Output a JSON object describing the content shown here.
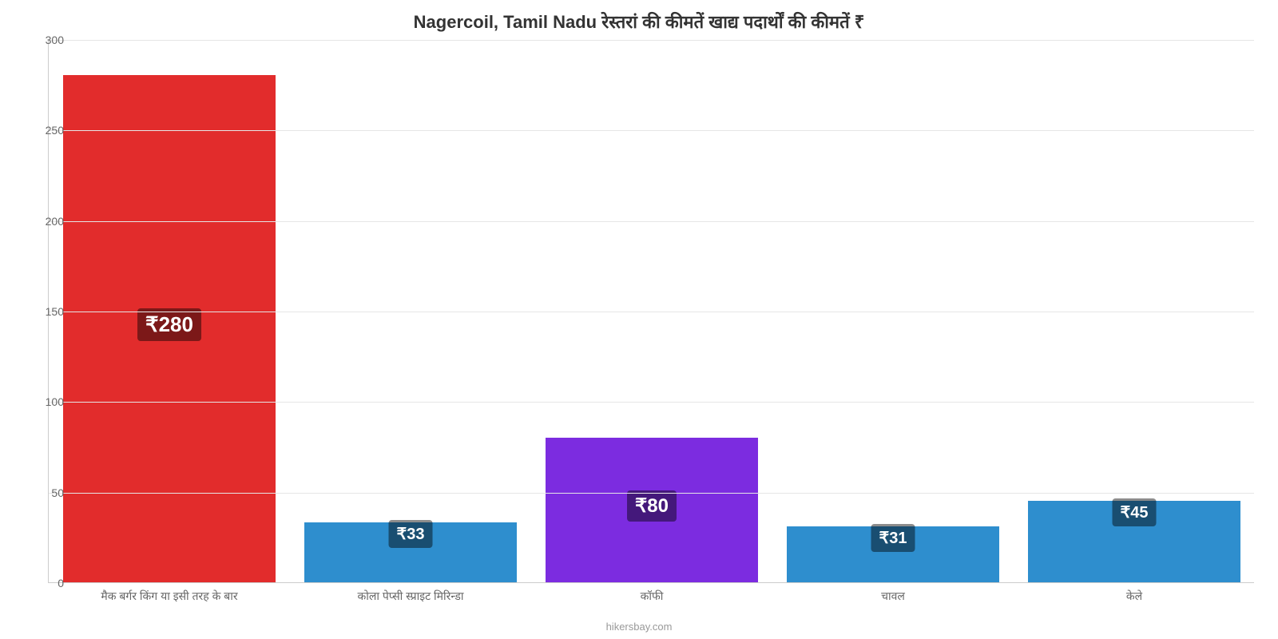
{
  "chart": {
    "type": "bar",
    "title": "Nagercoil, Tamil Nadu रेस्तरां की कीमतें खाद्य पदार्थों की कीमतें ₹",
    "title_fontsize": 22,
    "title_color": "#333333",
    "background_color": "#ffffff",
    "grid_color": "#e6e6e6",
    "axis_color": "#cccccc",
    "ylim": [
      0,
      300
    ],
    "ytick_step": 50,
    "yticks": [
      0,
      50,
      100,
      150,
      200,
      250,
      300
    ],
    "categories": [
      "मैक बर्गर किंग या इसी तरह के बार",
      "कोला पेप्सी स्प्राइट मिरिन्डा",
      "कॉफी",
      "चावल",
      "केले"
    ],
    "values": [
      280,
      33,
      80,
      31,
      45
    ],
    "value_labels": [
      "₹280",
      "₹33",
      "₹80",
      "₹31",
      "₹45"
    ],
    "bar_colors": [
      "#e22c2c",
      "#2e8ece",
      "#7c2ce0",
      "#2e8ece",
      "#2e8ece"
    ],
    "label_bg": "rgba(0,0,0,0.45)",
    "label_text_color": "#ffffff",
    "label_fontsizes": [
      26,
      20,
      24,
      20,
      20
    ],
    "xtick_fontsize": 14,
    "ytick_fontsize": 14,
    "tick_color": "#666666",
    "bar_width_ratio": 0.88,
    "footer": "hikersbay.com",
    "footer_color": "#999999",
    "footer_fontsize": 13
  }
}
